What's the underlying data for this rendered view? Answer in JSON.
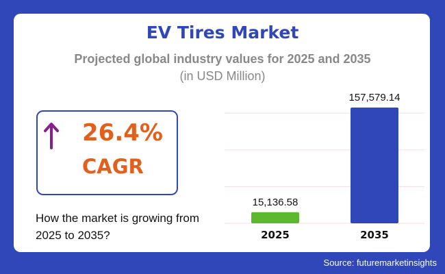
{
  "title": "EV Tires Market",
  "subtitle": "Projected global industry values for 2025 and 2035",
  "unit": "(in USD Million)",
  "cagr": {
    "value": "26.4%",
    "label": "CAGR",
    "icon": "arrow-up-icon"
  },
  "question": "How the market is growing from 2025 to 2035?",
  "source": "Source: futuremarketinsights",
  "colors": {
    "background": "#3047b9",
    "bar_2025": "#5cb82e",
    "bar_2035": "#3047b9",
    "cagr_text": "#e2601c",
    "arrow": "#8b1e8f"
  },
  "chart_data": {
    "type": "bar",
    "categories": [
      "2025",
      "2035"
    ],
    "values": [
      15136.58,
      157579.14
    ],
    "value_labels": [
      "15,136.58",
      "157,579.14"
    ],
    "ylim": [
      0,
      160000
    ],
    "grid": true,
    "gridlines": [
      0,
      50000,
      100000,
      150000
    ]
  }
}
